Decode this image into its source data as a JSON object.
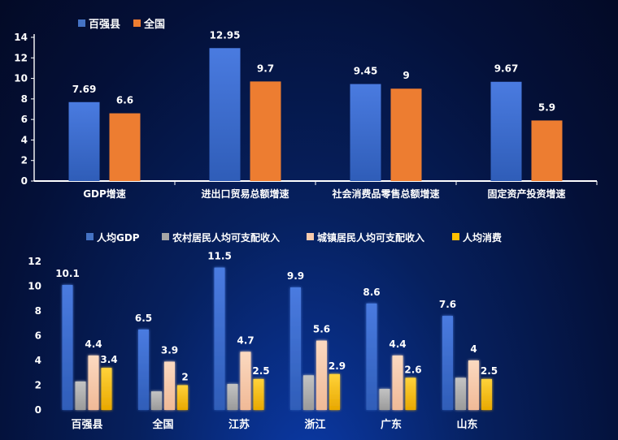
{
  "chart_data": [
    {
      "type": "bar",
      "categories": [
        "GDP增速",
        "进出口贸易总额增速",
        "社会消费品零售总额增速",
        "固定资产投资增速"
      ],
      "series": [
        {
          "name": "百强县",
          "values": [
            7.69,
            12.95,
            9.45,
            9.67
          ],
          "labels": [
            "7.69",
            "12.95",
            "9.45",
            "9.67"
          ]
        },
        {
          "name": "全国",
          "values": [
            6.6,
            9.7,
            9,
            5.9
          ],
          "labels": [
            "6.6",
            "9.7",
            "9",
            "5.9"
          ]
        }
      ],
      "yticks": [
        "0",
        "2",
        "4",
        "6",
        "8",
        "10",
        "12",
        "14"
      ],
      "ylim": [
        0,
        14
      ],
      "legend": "top-left",
      "grid": false
    },
    {
      "type": "bar",
      "categories": [
        "百强县",
        "全国",
        "江苏",
        "浙江",
        "广东",
        "山东"
      ],
      "series": [
        {
          "name": "人均GDP",
          "values": [
            10.1,
            6.5,
            11.5,
            9.9,
            8.6,
            7.6
          ],
          "labels": [
            "10.1",
            "6.5",
            "11.5",
            "9.9",
            "8.6",
            "7.6"
          ]
        },
        {
          "name": "农村居民人均可支配收入",
          "values": [
            2.3,
            1.5,
            2.1,
            2.8,
            1.7,
            2.6
          ],
          "labels": [
            "",
            "",
            "",
            "",
            "",
            ""
          ]
        },
        {
          "name": "城镇居民人均可支配收入",
          "values": [
            4.4,
            3.9,
            4.7,
            5.6,
            4.4,
            4
          ],
          "labels": [
            "4.4",
            "3.9",
            "4.7",
            "5.6",
            "4.4",
            "4"
          ]
        },
        {
          "name": "人均消费",
          "values": [
            3.4,
            2,
            2.5,
            2.9,
            2.6,
            2.5
          ],
          "labels": [
            "3.4",
            "2",
            "2.5",
            "2.9",
            "2.6",
            "2.5"
          ]
        }
      ],
      "yticks": [
        "0",
        "2",
        "4",
        "6",
        "8",
        "10",
        "12"
      ],
      "ylim": [
        0,
        12
      ],
      "legend": "top-center",
      "grid": false
    }
  ],
  "colors": {
    "chart1": [
      "#4472c4",
      "#ed7d31"
    ],
    "chart2": [
      "#4472c4",
      "#a5a5a5",
      "#f8cbad",
      "#ffc000"
    ],
    "text": "#ffffff",
    "axis": "#ffffff"
  }
}
